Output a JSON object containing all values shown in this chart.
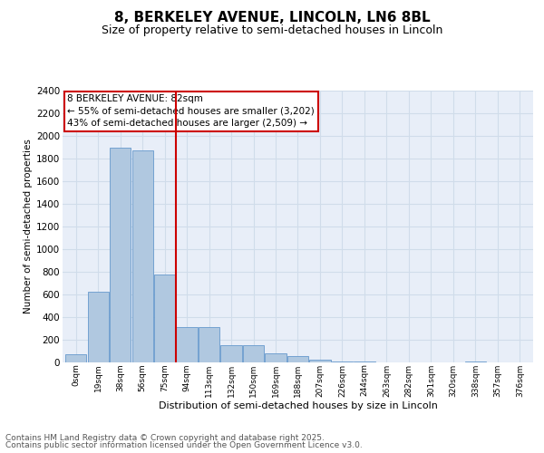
{
  "title": "8, BERKELEY AVENUE, LINCOLN, LN6 8BL",
  "subtitle": "Size of property relative to semi-detached houses in Lincoln",
  "xlabel": "Distribution of semi-detached houses by size in Lincoln",
  "ylabel": "Number of semi-detached properties",
  "bar_labels": [
    "0sqm",
    "19sqm",
    "38sqm",
    "56sqm",
    "75sqm",
    "94sqm",
    "113sqm",
    "132sqm",
    "150sqm",
    "169sqm",
    "188sqm",
    "207sqm",
    "226sqm",
    "244sqm",
    "263sqm",
    "282sqm",
    "301sqm",
    "320sqm",
    "338sqm",
    "357sqm",
    "376sqm"
  ],
  "bar_values": [
    75,
    625,
    1900,
    1870,
    775,
    310,
    310,
    155,
    155,
    80,
    55,
    25,
    10,
    5,
    3,
    2,
    2,
    0,
    5,
    0,
    0
  ],
  "bar_color": "#b0c8e0",
  "bar_edge_color": "#6699cc",
  "grid_color": "#d0dcea",
  "background_color": "#e8eef8",
  "annotation_box_color": "#cc0000",
  "property_line_x": 4.5,
  "annotation_line1": "8 BERKELEY AVENUE: 82sqm",
  "annotation_line2": "← 55% of semi-detached houses are smaller (3,202)",
  "annotation_line3": "43% of semi-detached houses are larger (2,509) →",
  "ylim": [
    0,
    2400
  ],
  "yticks": [
    0,
    200,
    400,
    600,
    800,
    1000,
    1200,
    1400,
    1600,
    1800,
    2000,
    2200,
    2400
  ],
  "footer_line1": "Contains HM Land Registry data © Crown copyright and database right 2025.",
  "footer_line2": "Contains public sector information licensed under the Open Government Licence v3.0.",
  "title_fontsize": 11,
  "subtitle_fontsize": 9,
  "annotation_fontsize": 7.5,
  "footer_fontsize": 6.5,
  "ylabel_fontsize": 7.5,
  "xlabel_fontsize": 8,
  "ytick_fontsize": 7.5,
  "xtick_fontsize": 6.5
}
